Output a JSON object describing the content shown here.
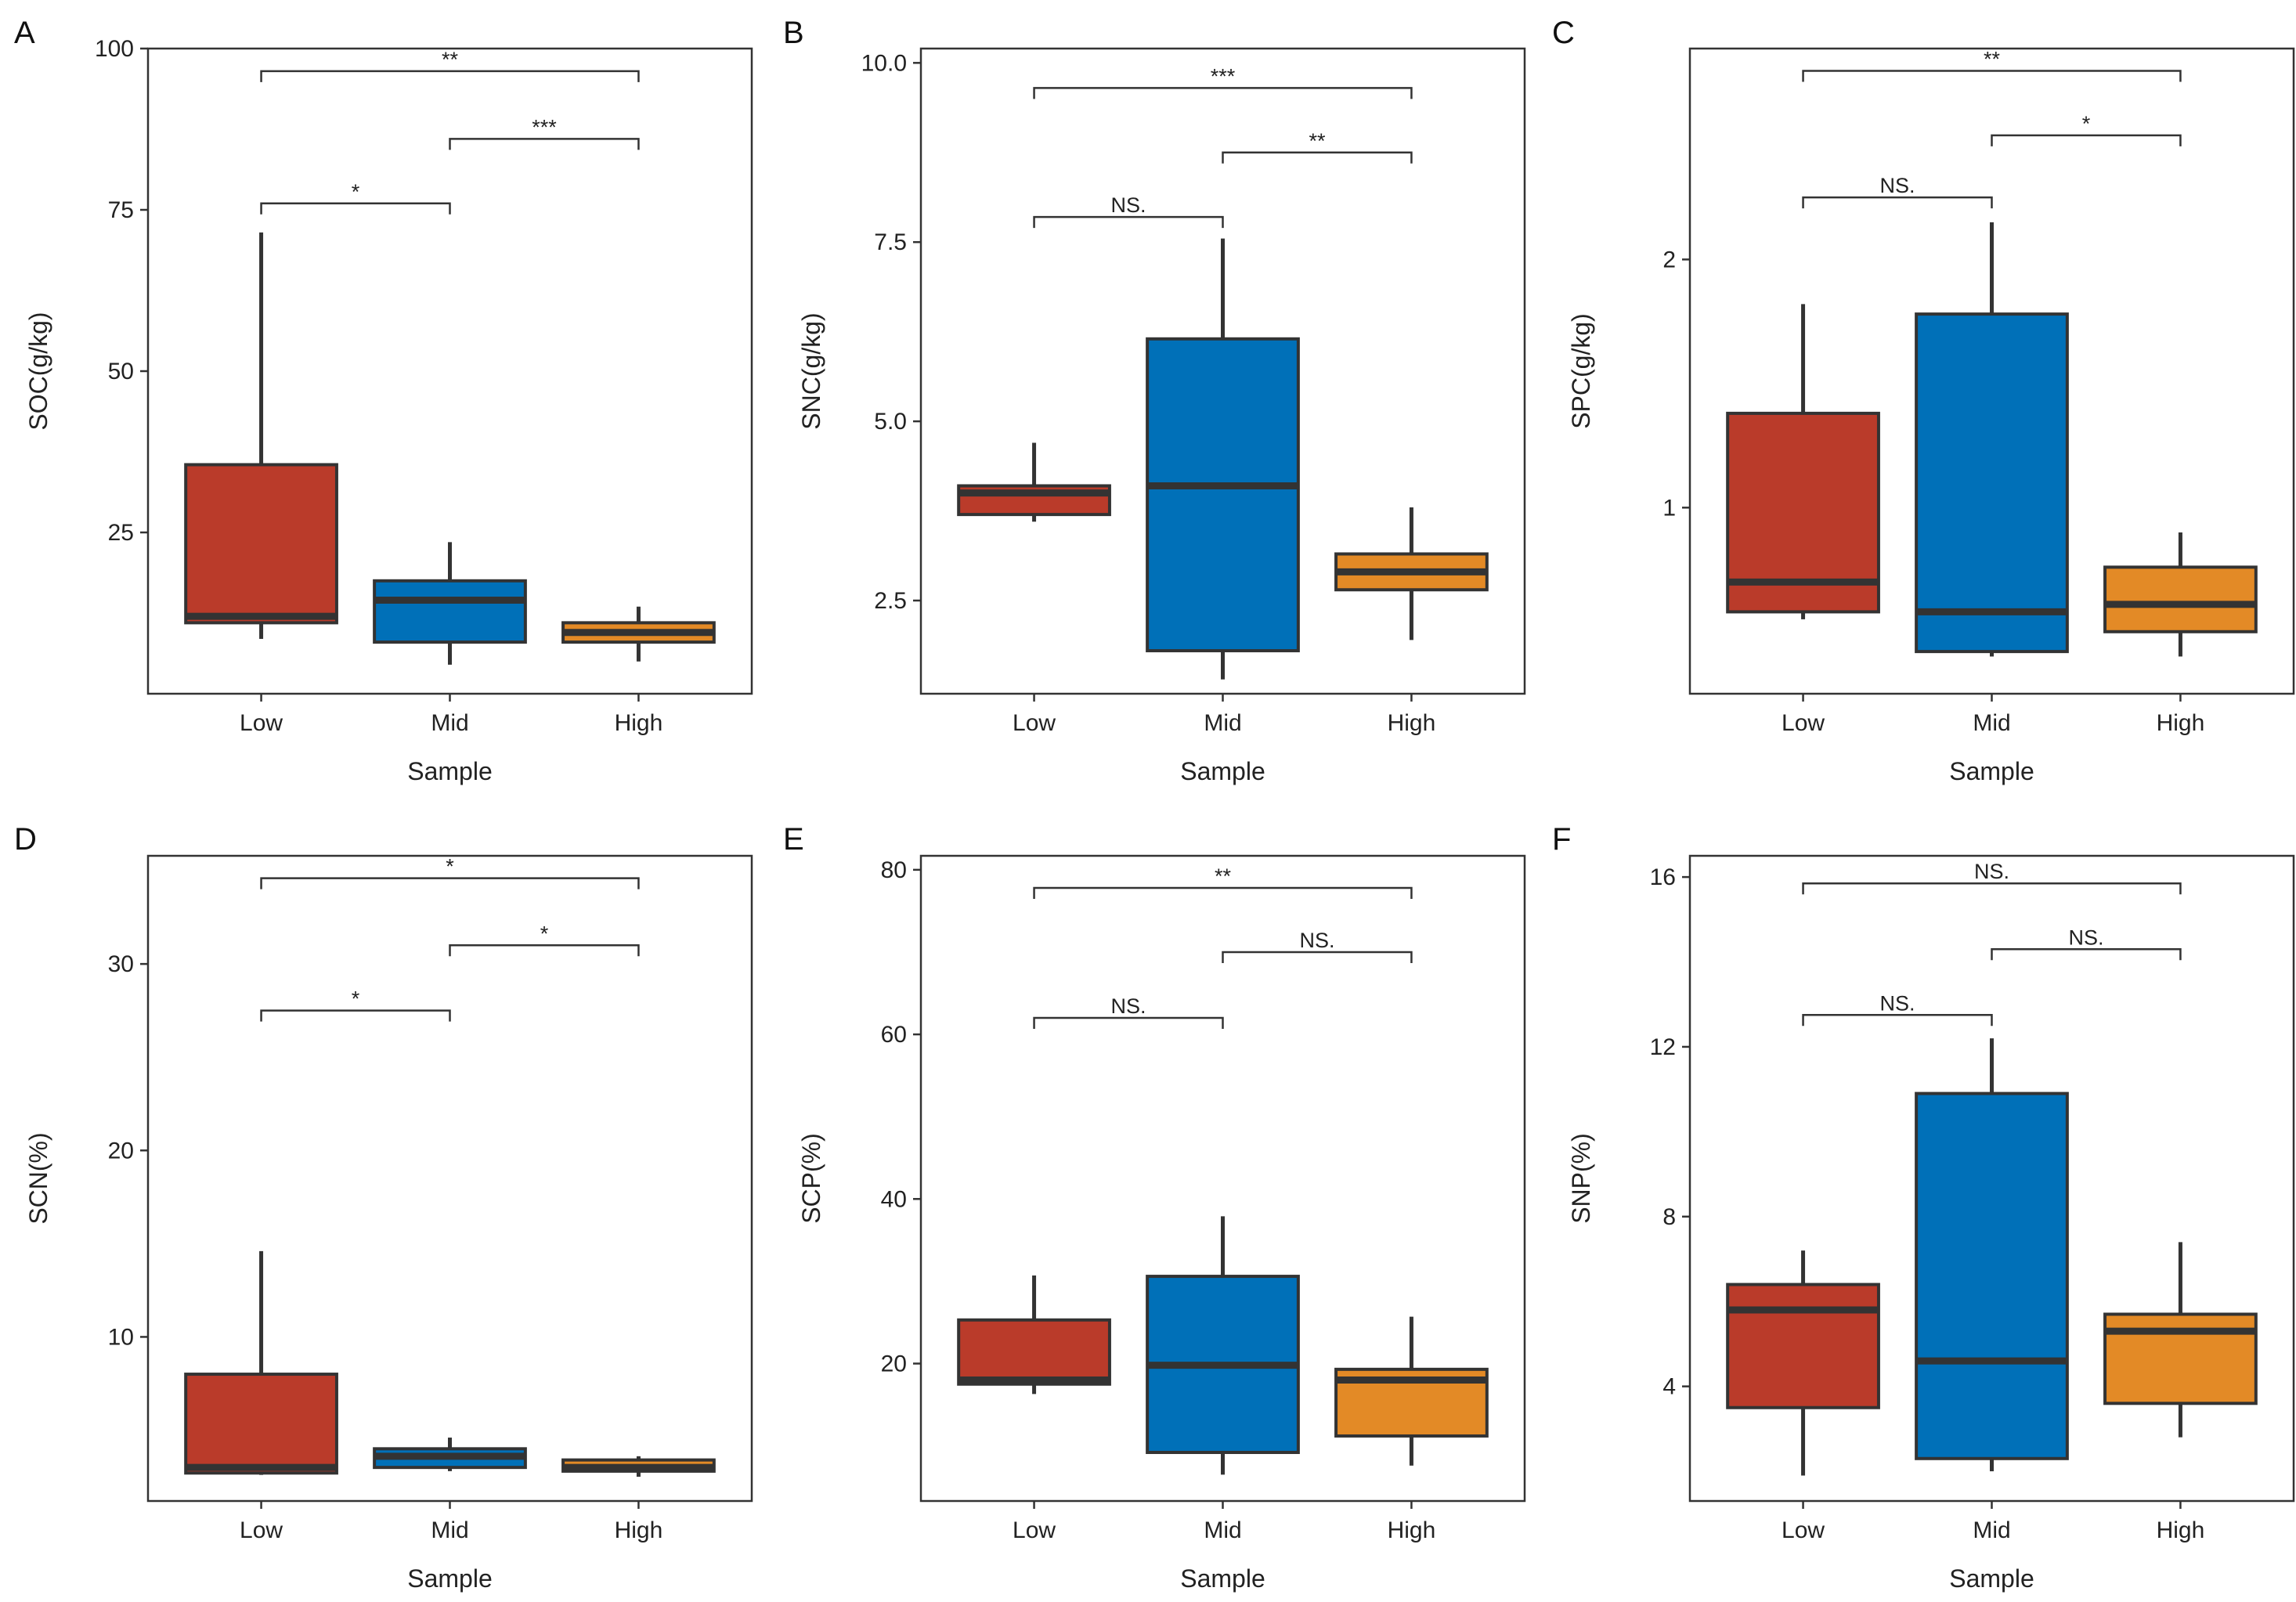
{
  "colors": {
    "Low": "#BA3B2A",
    "Mid": "#0070B8",
    "High": "#E38A26",
    "line": "#333333"
  },
  "chart_data": [
    {
      "type": "box",
      "label": "A",
      "ylabel": "SOC(g/kg)",
      "xlabel": "Sample",
      "categories": [
        "Low",
        "Mid",
        "High"
      ],
      "ylim": [
        0,
        100
      ],
      "yticks": [
        25,
        50,
        75,
        100
      ],
      "ytick_labels": [
        "25",
        "50",
        "75",
        "100"
      ],
      "boxes": [
        {
          "group": "Low",
          "min": 8.5,
          "q1": 11,
          "median": 12,
          "q3": 35.5,
          "max": 71.5
        },
        {
          "group": "Mid",
          "min": 4.5,
          "q1": 8,
          "median": 14.5,
          "q3": 17.5,
          "max": 23.5
        },
        {
          "group": "High",
          "min": 5,
          "q1": 8,
          "median": 9.5,
          "q3": 11,
          "max": 13.5
        }
      ],
      "sig": [
        {
          "from": 0,
          "to": 1,
          "y": 76,
          "label": "*"
        },
        {
          "from": 1,
          "to": 2,
          "y": 86,
          "label": "***"
        },
        {
          "from": 0,
          "to": 2,
          "y": 96.5,
          "label": "**"
        }
      ]
    },
    {
      "type": "box",
      "label": "B",
      "ylabel": "SNC(g/kg)",
      "xlabel": "Sample",
      "categories": [
        "Low",
        "Mid",
        "High"
      ],
      "ylim": [
        1.2,
        10.2
      ],
      "yticks": [
        2.5,
        5,
        7.5,
        10
      ],
      "ytick_labels": [
        "2.5",
        "5.0",
        "7.5",
        "10.0"
      ],
      "boxes": [
        {
          "group": "Low",
          "min": 3.6,
          "q1": 3.7,
          "median": 4.0,
          "q3": 4.1,
          "max": 4.7
        },
        {
          "group": "Mid",
          "min": 1.4,
          "q1": 1.8,
          "median": 4.1,
          "q3": 6.15,
          "max": 7.55
        },
        {
          "group": "High",
          "min": 1.95,
          "q1": 2.65,
          "median": 2.9,
          "q3": 3.15,
          "max": 3.8
        }
      ],
      "sig": [
        {
          "from": 0,
          "to": 1,
          "y": 7.85,
          "label": "NS."
        },
        {
          "from": 1,
          "to": 2,
          "y": 8.75,
          "label": "**"
        },
        {
          "from": 0,
          "to": 2,
          "y": 9.65,
          "label": "***"
        }
      ]
    },
    {
      "type": "box",
      "label": "C",
      "ylabel": "SPC(g/kg)",
      "xlabel": "Sample",
      "categories": [
        "Low",
        "Mid",
        "High"
      ],
      "ylim": [
        0.25,
        2.85
      ],
      "yticks": [
        1,
        2
      ],
      "ytick_labels": [
        "1",
        "2"
      ],
      "boxes": [
        {
          "group": "Low",
          "min": 0.55,
          "q1": 0.58,
          "median": 0.7,
          "q3": 1.38,
          "max": 1.82
        },
        {
          "group": "Mid",
          "min": 0.4,
          "q1": 0.42,
          "median": 0.58,
          "q3": 1.78,
          "max": 2.15
        },
        {
          "group": "High",
          "min": 0.4,
          "q1": 0.5,
          "median": 0.61,
          "q3": 0.76,
          "max": 0.9
        }
      ],
      "sig": [
        {
          "from": 0,
          "to": 1,
          "y": 2.25,
          "label": "NS."
        },
        {
          "from": 1,
          "to": 2,
          "y": 2.5,
          "label": "*"
        },
        {
          "from": 0,
          "to": 2,
          "y": 2.76,
          "label": "**"
        }
      ]
    },
    {
      "type": "box",
      "label": "D",
      "ylabel": "SCN(%)",
      "xlabel": "Sample",
      "categories": [
        "Low",
        "Mid",
        "High"
      ],
      "ylim": [
        1.2,
        35.8
      ],
      "yticks": [
        10,
        20,
        30
      ],
      "ytick_labels": [
        "10",
        "20",
        "30"
      ],
      "boxes": [
        {
          "group": "Low",
          "min": 2.6,
          "q1": 2.7,
          "median": 3.0,
          "q3": 8.0,
          "max": 14.6
        },
        {
          "group": "Mid",
          "min": 2.8,
          "q1": 3.0,
          "median": 3.6,
          "q3": 4.0,
          "max": 4.6
        },
        {
          "group": "High",
          "min": 2.5,
          "q1": 2.8,
          "median": 3.0,
          "q3": 3.4,
          "max": 3.6
        }
      ],
      "sig": [
        {
          "from": 0,
          "to": 1,
          "y": 27.5,
          "label": "*"
        },
        {
          "from": 1,
          "to": 2,
          "y": 31,
          "label": "*"
        },
        {
          "from": 0,
          "to": 2,
          "y": 34.6,
          "label": "*"
        }
      ]
    },
    {
      "type": "box",
      "label": "E",
      "ylabel": "SCP(%)",
      "xlabel": "Sample",
      "categories": [
        "Low",
        "Mid",
        "High"
      ],
      "ylim": [
        3.3,
        81.7
      ],
      "yticks": [
        20,
        40,
        60,
        80
      ],
      "ytick_labels": [
        "20",
        "40",
        "60",
        "80"
      ],
      "boxes": [
        {
          "group": "Low",
          "min": 16.3,
          "q1": 17.5,
          "median": 18.0,
          "q3": 25.3,
          "max": 30.7
        },
        {
          "group": "Mid",
          "min": 6.5,
          "q1": 9.2,
          "median": 19.8,
          "q3": 30.6,
          "max": 37.9
        },
        {
          "group": "High",
          "min": 7.6,
          "q1": 11.2,
          "median": 18.0,
          "q3": 19.3,
          "max": 25.7
        }
      ],
      "sig": [
        {
          "from": 0,
          "to": 1,
          "y": 62,
          "label": "NS."
        },
        {
          "from": 1,
          "to": 2,
          "y": 70,
          "label": "NS."
        },
        {
          "from": 0,
          "to": 2,
          "y": 77.8,
          "label": "**"
        }
      ]
    },
    {
      "type": "box",
      "label": "F",
      "ylabel": "SNP(%)",
      "xlabel": "Sample",
      "categories": [
        "Low",
        "Mid",
        "High"
      ],
      "ylim": [
        1.3,
        16.5
      ],
      "yticks": [
        4,
        8,
        12,
        16
      ],
      "ytick_labels": [
        "4",
        "8",
        "12",
        "16"
      ],
      "boxes": [
        {
          "group": "Low",
          "min": 1.9,
          "q1": 3.5,
          "median": 5.8,
          "q3": 6.4,
          "max": 7.2
        },
        {
          "group": "Mid",
          "min": 2.0,
          "q1": 2.3,
          "median": 4.6,
          "q3": 10.9,
          "max": 12.2
        },
        {
          "group": "High",
          "min": 2.8,
          "q1": 3.6,
          "median": 5.3,
          "q3": 5.7,
          "max": 7.4
        }
      ],
      "sig": [
        {
          "from": 0,
          "to": 1,
          "y": 12.75,
          "label": "NS."
        },
        {
          "from": 1,
          "to": 2,
          "y": 14.3,
          "label": "NS."
        },
        {
          "from": 0,
          "to": 2,
          "y": 15.85,
          "label": "NS."
        }
      ]
    }
  ]
}
